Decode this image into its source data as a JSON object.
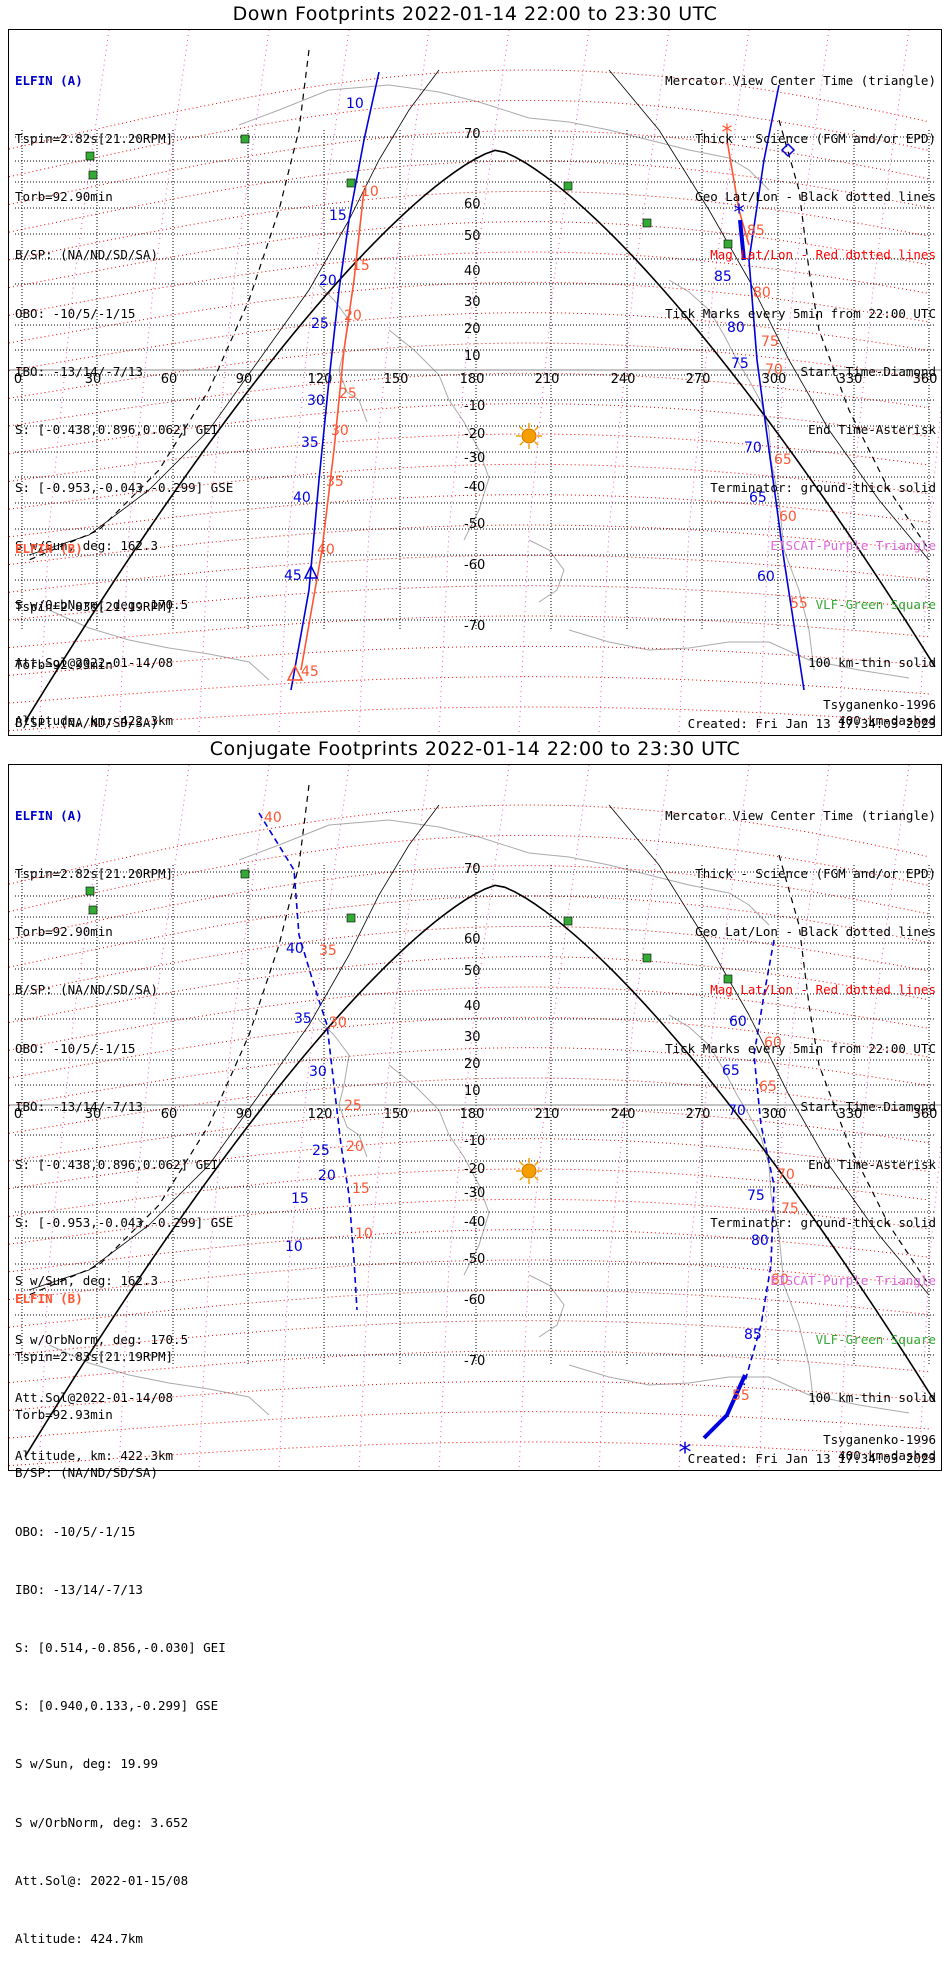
{
  "titles": {
    "down": "Down Footprints 2022-01-14 22:00 to 23:30 UTC",
    "conj": "Conjugate Footprints 2022-01-14 22:00 to 23:30 UTC"
  },
  "elfin_a": {
    "header": "ELFIN (A)",
    "lines": [
      "Tspin=2.82s[21.20RPM]",
      "Torb=92.90min",
      "B/SP: (NA/ND/SD/SA)",
      "OBO: -10/5/-1/15",
      "IBO: -13/14/-7/13",
      "S: [-0.438,0.896,0.062] GEI",
      "S: [-0.953,-0.043,-0.299] GSE",
      "S w/Sun, deg: 162.3",
      "S w/OrbNorm, deg: 170.5",
      "Att.Sol@2022-01-14/08",
      "Altitude, km: 422.3km"
    ]
  },
  "elfin_b": {
    "header": "ELFIN (B)",
    "lines": [
      "Tspin=2.83s[21.19RPM]",
      "Torb=92.93min",
      "B/SP: (NA/ND/SD/SA)",
      "OBO: -10/5/-1/15",
      "IBO: -13/14/-7/13",
      "S: [0.514,-0.856,-0.030] GEI",
      "S: [0.940,0.133,-0.299] GSE",
      "S w/Sun, deg: 19.99",
      "S w/OrbNorm, deg: 3.652",
      "Att.Sol@: 2022-01-15/08",
      "Altitude: 424.7km"
    ]
  },
  "legend": [
    {
      "text": "Mercator View Center Time (triangle)",
      "color": "#000000"
    },
    {
      "text": "Thick - Science (FGM and/or EPD)",
      "color": "#000000"
    },
    {
      "text": "Geo Lat/Lon - Black dotted lines",
      "color": "#000000"
    },
    {
      "text": "Mag Lat/Lon - Red dotted lines",
      "color": "#ff0000"
    },
    {
      "text": "Tick Marks every 5min from 22:00 UTC",
      "color": "#000000"
    },
    {
      "text": "Start Time-Diamond",
      "color": "#000000"
    },
    {
      "text": "End Time-Asterisk",
      "color": "#000000"
    },
    {
      "text": "Terminator: ground-thick solid",
      "color": "#000000"
    },
    {
      "text": "EISCAT-Purple Triangle",
      "color": "#dd66dd"
    },
    {
      "text": "VLF-Green Square",
      "color": "#33aa33"
    },
    {
      "text": "100 km-thin solid",
      "color": "#000000"
    },
    {
      "text": "400 km-dashed",
      "color": "#000000"
    }
  ],
  "credit": "Tsyganenko-1996",
  "created": "Created: Fri Jan 13 17:34:03 2023",
  "colors": {
    "elfin_a": "#0000dd",
    "elfin_b": "#ff5533",
    "mag_grid": "#ee0000",
    "geo_grid": "#000000",
    "sun": "#f5a000",
    "vlf": "#33aa33",
    "coast": "#aaaaaa"
  },
  "icons": [
    "sun-icon",
    "vlf-square-icon",
    "view-center-triangle-icon",
    "start-diamond-icon",
    "end-asterisk-icon"
  ],
  "chart_data": [
    {
      "type": "map",
      "projection": "mercator",
      "panel": "down",
      "lon_ticks": [
        "0",
        "30",
        "60",
        "90",
        "120",
        "150",
        "180",
        "210",
        "240",
        "270",
        "300",
        "330",
        "360"
      ],
      "lat_ticks": [
        "70",
        "60",
        "50",
        "40",
        "30",
        "20",
        "10",
        "-10",
        "-20",
        "-30",
        "-40",
        "-50",
        "-60",
        "-70"
      ],
      "grid": true,
      "series": [
        {
          "name": "ELFIN (A)",
          "color": "#0000dd",
          "minute_labels": [
            "10",
            "15",
            "20",
            "25",
            "30",
            "35",
            "40",
            "45",
            "60",
            "65",
            "70",
            "75",
            "80",
            "85"
          ]
        },
        {
          "name": "ELFIN (B)",
          "color": "#ff5533",
          "minute_labels": [
            "10",
            "15",
            "20",
            "25",
            "30",
            "35",
            "40",
            "45",
            "55",
            "60",
            "65",
            "70",
            "75",
            "80",
            "85"
          ]
        }
      ]
    },
    {
      "type": "map",
      "projection": "mercator",
      "panel": "conjugate",
      "lon_ticks": [
        "0",
        "30",
        "60",
        "90",
        "120",
        "150",
        "180",
        "210",
        "240",
        "270",
        "300",
        "330",
        "360"
      ],
      "lat_ticks": [
        "70",
        "60",
        "50",
        "40",
        "30",
        "20",
        "10",
        "-10",
        "-20",
        "-30",
        "-40",
        "-50",
        "-60",
        "-70"
      ],
      "grid": true,
      "series": [
        {
          "name": "ELFIN (A)",
          "color": "#0000dd",
          "minute_labels": [
            "10",
            "15",
            "20",
            "25",
            "30",
            "35",
            "40",
            "60",
            "65",
            "70",
            "75",
            "80",
            "85"
          ]
        },
        {
          "name": "ELFIN (B)",
          "color": "#ff5533",
          "minute_labels": [
            "10",
            "15",
            "20",
            "25",
            "30",
            "35",
            "40",
            "55",
            "60",
            "65",
            "70",
            "75",
            "80"
          ]
        }
      ]
    }
  ]
}
